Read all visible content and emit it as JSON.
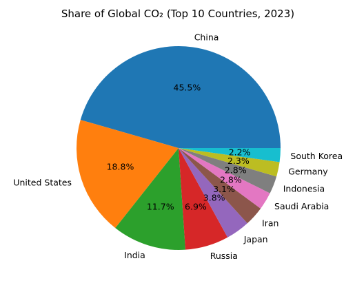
{
  "chart_data": {
    "type": "pie",
    "title": "Share of Global CO₂ (Top 10 Countries, 2023)",
    "start_angle_deg": 0,
    "direction": "counterclockwise",
    "slices": [
      {
        "label": "China",
        "value": 45.5,
        "pct_label": "45.5%",
        "color": "#1f77b4"
      },
      {
        "label": "United States",
        "value": 18.8,
        "pct_label": "18.8%",
        "color": "#ff7f0e"
      },
      {
        "label": "India",
        "value": 11.7,
        "pct_label": "11.7%",
        "color": "#2ca02c"
      },
      {
        "label": "Russia",
        "value": 6.9,
        "pct_label": "6.9%",
        "color": "#d62728"
      },
      {
        "label": "Japan",
        "value": 3.8,
        "pct_label": "3.8%",
        "color": "#9467bd"
      },
      {
        "label": "Iran",
        "value": 3.1,
        "pct_label": "3.1%",
        "color": "#8c564b"
      },
      {
        "label": "Saudi Arabia",
        "value": 2.8,
        "pct_label": "2.8%",
        "color": "#e377c2"
      },
      {
        "label": "Indonesia",
        "value": 2.8,
        "pct_label": "2.8%",
        "color": "#7f7f7f"
      },
      {
        "label": "Germany",
        "value": 2.3,
        "pct_label": "2.3%",
        "color": "#bcbd22"
      },
      {
        "label": "South Korea",
        "value": 2.2,
        "pct_label": "2.2%",
        "color": "#17becf"
      }
    ]
  }
}
